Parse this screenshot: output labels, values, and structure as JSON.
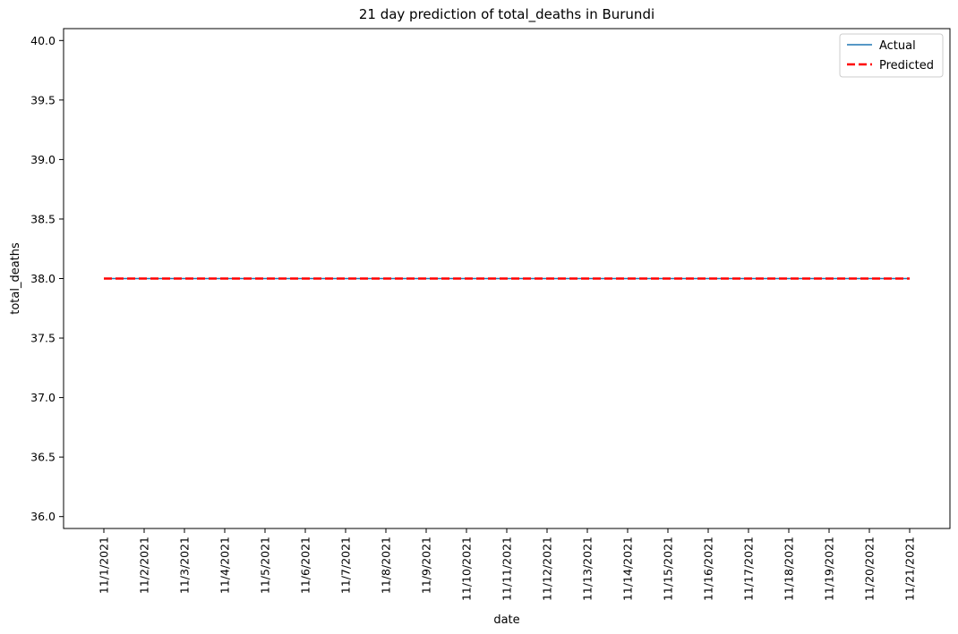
{
  "chart_data": {
    "type": "line",
    "title": "21 day prediction of total_deaths in Burundi",
    "xlabel": "date",
    "ylabel": "total_deaths",
    "x": [
      "11/1/2021",
      "11/2/2021",
      "11/3/2021",
      "11/4/2021",
      "11/5/2021",
      "11/6/2021",
      "11/7/2021",
      "11/8/2021",
      "11/9/2021",
      "11/10/2021",
      "11/11/2021",
      "11/12/2021",
      "11/13/2021",
      "11/14/2021",
      "11/15/2021",
      "11/16/2021",
      "11/17/2021",
      "11/18/2021",
      "11/19/2021",
      "11/20/2021",
      "11/21/2021"
    ],
    "ylim": [
      35.9,
      40.1
    ],
    "yticks": [
      "36.0",
      "36.5",
      "37.0",
      "37.5",
      "38.0",
      "38.5",
      "39.0",
      "39.5",
      "40.0"
    ],
    "grid": false,
    "legend_position": "top-right",
    "series": [
      {
        "name": "Actual",
        "color": "#1f77b4",
        "style": "solid",
        "values": [
          38,
          38,
          38,
          38,
          38,
          38,
          38,
          38,
          38,
          38,
          38,
          38,
          38,
          38,
          38,
          38,
          38,
          38,
          38,
          38,
          38
        ]
      },
      {
        "name": "Predicted",
        "color": "#ff0000",
        "style": "dashed",
        "values": [
          38,
          38,
          38,
          38,
          38,
          38,
          38,
          38,
          38,
          38,
          38,
          38,
          38,
          38,
          38,
          38,
          38,
          38,
          38,
          38,
          38
        ]
      }
    ]
  }
}
